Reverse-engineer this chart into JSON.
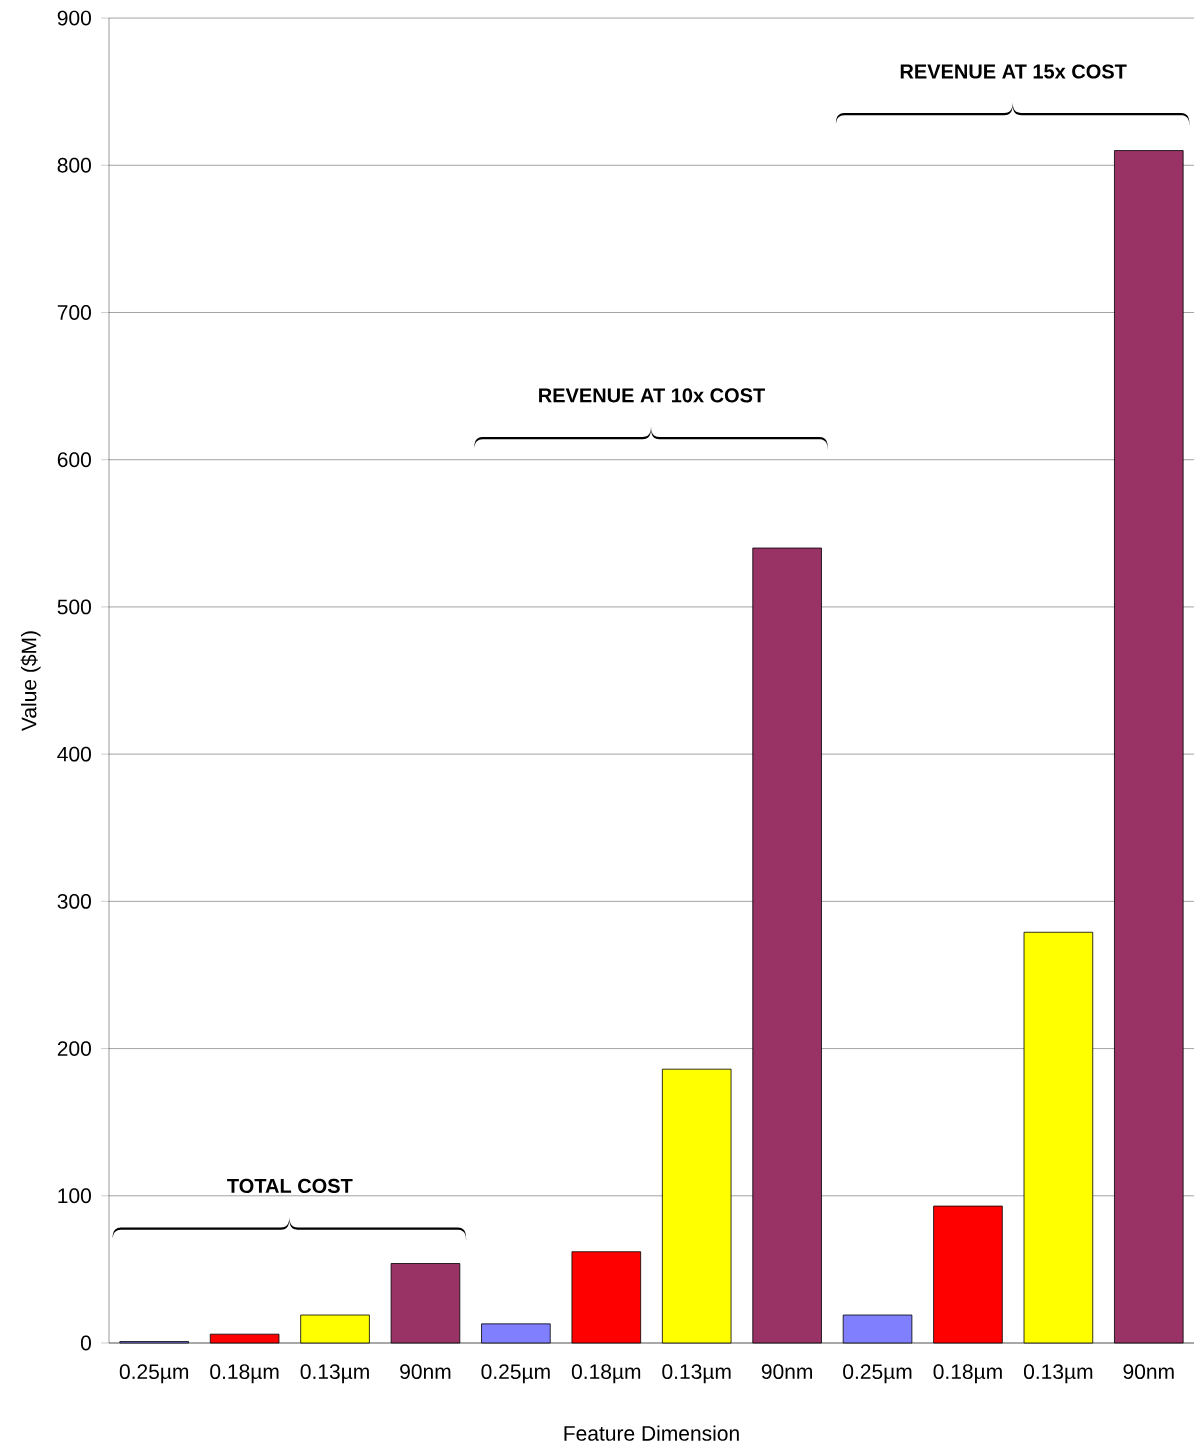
{
  "chart_data": {
    "type": "bar",
    "xlabel": "Feature Dimension",
    "ylabel": "Value ($M)",
    "categories": [
      "0.25µm",
      "0.18µm",
      "0.13µm",
      "90nm",
      "0.25µm",
      "0.18µm",
      "0.13µm",
      "90nm",
      "0.25µm",
      "0.18µm",
      "0.13µm",
      "90nm"
    ],
    "values": [
      1,
      6,
      19,
      54,
      13,
      62,
      186,
      540,
      19,
      93,
      279,
      810
    ],
    "colors": [
      "#8080ff",
      "#ff0000",
      "#ffff00",
      "#993366",
      "#8080ff",
      "#ff0000",
      "#ffff00",
      "#993366",
      "#8080ff",
      "#ff0000",
      "#ffff00",
      "#993366"
    ],
    "ylim": [
      0,
      900
    ],
    "yticks": [
      0,
      100,
      200,
      300,
      400,
      500,
      600,
      700,
      800,
      900
    ],
    "grid": "y",
    "annotations": [
      "TOTAL COST",
      "REVENUE AT 10x COST",
      "REVENUE AT 15x COST"
    ]
  }
}
